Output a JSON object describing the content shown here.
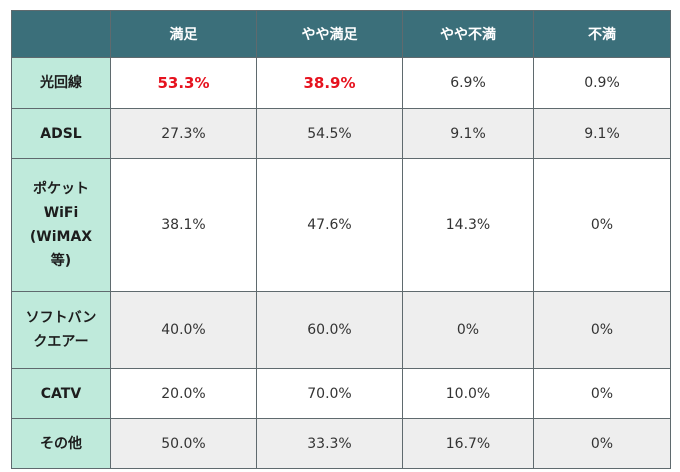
{
  "headers": [
    "",
    "満足",
    "やや満足",
    "やや不満",
    "不満"
  ],
  "rows": [
    {
      "label": "光回線",
      "values": [
        "53.3%",
        "38.9%",
        "6.9%",
        "0.9%"
      ]
    },
    {
      "label": "ADSL",
      "values": [
        "27.3%",
        "54.5%",
        "9.1%",
        "9.1%"
      ]
    },
    {
      "label": "ポケット WiFi (WiMAX 等)",
      "label_lines": [
        "ポケット",
        "WiFi",
        "(WiMAX",
        "等)"
      ],
      "values": [
        "38.1%",
        "47.6%",
        "14.3%",
        "0%"
      ]
    },
    {
      "label": "ソフトバンクエアー",
      "label_lines": [
        "ソフトバン",
        "クエアー"
      ],
      "values": [
        "40.0%",
        "60.0%",
        "0%",
        "0%"
      ]
    },
    {
      "label": "CATV",
      "values": [
        "20.0%",
        "70.0%",
        "10.0%",
        "0%"
      ]
    },
    {
      "label": "その他",
      "values": [
        "50.0%",
        "33.3%",
        "16.7%",
        "0%"
      ]
    }
  ],
  "colors": {
    "header_bg": "#3b6f7a",
    "rowhead_bg": "#bfeadb",
    "highlight": "#e6121e",
    "stripe": "#eeeeee"
  }
}
